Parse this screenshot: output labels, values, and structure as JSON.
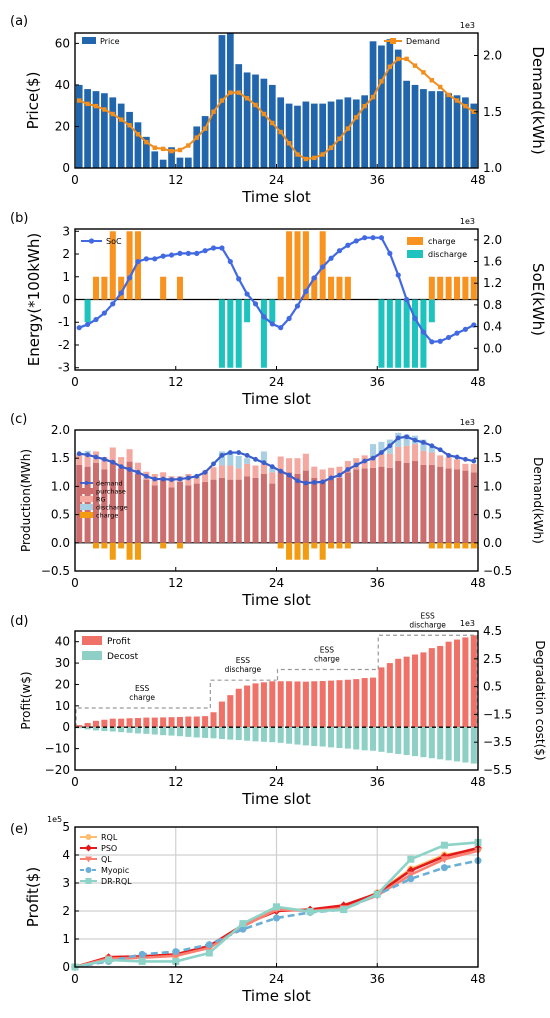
{
  "chart_data": [
    {
      "panel": "(a)",
      "type": "bar+line",
      "xlabel": "Time slot",
      "ylabel": "Price($)",
      "ylabel_right": "Demand(kWh)",
      "right_multiplier": "1e3",
      "xlim": [
        0,
        48
      ],
      "ylim": [
        0,
        65
      ],
      "ylim_right": [
        1.0,
        2.2
      ],
      "xticks": [
        "0",
        "12",
        "24",
        "36",
        "48"
      ],
      "yticks": [
        0,
        20,
        40,
        60
      ],
      "yticks_right": [
        1.0,
        1.5,
        2.0
      ],
      "yticks_right_labels": [
        "1.0",
        "1.5",
        "2.0"
      ],
      "legend": [
        "Price",
        "Demand"
      ],
      "series": [
        {
          "name": "Price",
          "type": "bar",
          "values": [
            40,
            38,
            37,
            36,
            34,
            31,
            27,
            22,
            15,
            8,
            4,
            10,
            5,
            5,
            20,
            25,
            45,
            64,
            65,
            50,
            46,
            45,
            43,
            40,
            34,
            31,
            30,
            32,
            31,
            31,
            32,
            33,
            34,
            33,
            35,
            61,
            59,
            62,
            57,
            42,
            40,
            38,
            37,
            37,
            36,
            35,
            34,
            31
          ]
        },
        {
          "name": "Demand",
          "type": "line",
          "values": [
            1.6,
            1.57,
            1.55,
            1.52,
            1.48,
            1.43,
            1.38,
            1.3,
            1.23,
            1.18,
            1.17,
            1.15,
            1.16,
            1.2,
            1.27,
            1.35,
            1.5,
            1.6,
            1.67,
            1.67,
            1.62,
            1.56,
            1.48,
            1.4,
            1.32,
            1.22,
            1.12,
            1.08,
            1.09,
            1.12,
            1.18,
            1.26,
            1.35,
            1.45,
            1.55,
            1.63,
            1.77,
            1.9,
            1.97,
            1.97,
            1.91,
            1.85,
            1.78,
            1.72,
            1.65,
            1.6,
            1.55,
            1.5
          ]
        }
      ]
    },
    {
      "panel": "(b)",
      "type": "bar+line",
      "xlabel": "Time slot",
      "ylabel": "Energy(*100kWh)",
      "ylabel_right": "SoE(kWh)",
      "right_multiplier": "1e3",
      "xlim": [
        0,
        48
      ],
      "ylim": [
        -3.1,
        3.1
      ],
      "ylim_right": [
        -0.4,
        2.2
      ],
      "xticks": [
        "0",
        "12",
        "24",
        "36",
        "48"
      ],
      "yticks": [
        -3,
        -2,
        -1,
        0,
        1,
        2,
        3
      ],
      "yticks_right": [
        0.0,
        0.4,
        0.8,
        1.2,
        1.6,
        2.0
      ],
      "yticks_right_labels": [
        "0.0",
        "0.4",
        "0.8",
        "1.2",
        "1.6",
        "2.0"
      ],
      "legend": [
        "SoC",
        "charge",
        "discharge"
      ],
      "series": [
        {
          "name": "charge",
          "type": "bar",
          "values": [
            0,
            0,
            1,
            1,
            3,
            1,
            3,
            3,
            0,
            0,
            1,
            0,
            1,
            0,
            0,
            0,
            0,
            0,
            0,
            0,
            0,
            0,
            0,
            0,
            1,
            3,
            3,
            3,
            1,
            3,
            1,
            1,
            1,
            0,
            0,
            0,
            0,
            0,
            0,
            0,
            0,
            0,
            1,
            1,
            1,
            1,
            1,
            1
          ]
        },
        {
          "name": "discharge",
          "type": "bar",
          "values": [
            0,
            -1,
            0,
            0,
            0,
            0,
            0,
            0,
            0,
            0,
            0,
            0,
            0,
            0,
            0,
            0,
            0,
            -3,
            -3,
            -3,
            -1,
            0,
            -3,
            -1,
            0,
            0,
            0,
            0,
            0,
            0,
            0,
            0,
            0,
            0,
            0,
            0,
            -3,
            -3,
            -3,
            -3,
            -3,
            -3,
            -1,
            0,
            0,
            0,
            0,
            0
          ]
        },
        {
          "name": "SoC",
          "type": "line",
          "values": [
            0.38,
            0.44,
            0.53,
            0.65,
            0.82,
            1.02,
            1.3,
            1.6,
            1.65,
            1.65,
            1.7,
            1.72,
            1.75,
            1.75,
            1.75,
            1.8,
            1.85,
            1.85,
            1.6,
            1.28,
            1.0,
            0.82,
            0.58,
            0.45,
            0.38,
            0.55,
            0.78,
            1.05,
            1.3,
            1.5,
            1.66,
            1.8,
            1.9,
            1.98,
            2.04,
            2.04,
            2.04,
            1.75,
            1.35,
            0.9,
            0.55,
            0.3,
            0.12,
            0.13,
            0.2,
            0.28,
            0.35,
            0.43
          ]
        }
      ]
    },
    {
      "panel": "(c)",
      "type": "stacked-bar+line",
      "xlabel": "Time slot",
      "ylabel": "Production(MWh)",
      "ylabel_right": "Demand(kWh)",
      "right_multiplier": "1e3",
      "xlim": [
        0,
        48
      ],
      "ylim": [
        -0.5,
        2.0
      ],
      "ylim_right": [
        -0.5,
        2.0
      ],
      "xticks": [
        "0",
        "12",
        "24",
        "36",
        "48"
      ],
      "yticks": [
        -0.5,
        0.0,
        0.5,
        1.0,
        1.5,
        2.0
      ],
      "yticks_labels": [
        "−0.5",
        "0.0",
        "0.5",
        "1.0",
        "1.5",
        "2.0"
      ],
      "yticks_right": [
        -0.5,
        0.0,
        0.5,
        1.0,
        1.5,
        2.0
      ],
      "yticks_right_labels": [
        "−0.5",
        "0.0",
        "0.5",
        "1.0",
        "1.5",
        "2.0"
      ],
      "legend": [
        "demand",
        "purchase",
        "RG",
        "discharge",
        "charge"
      ],
      "series": [
        {
          "name": "purchase",
          "type": "bar",
          "values": [
            1.38,
            1.35,
            1.42,
            1.3,
            1.45,
            1.32,
            1.44,
            1.22,
            1.12,
            1.02,
            1.15,
            0.98,
            1.08,
            1.02,
            1.05,
            1.08,
            1.12,
            1.15,
            1.12,
            1.12,
            1.18,
            1.15,
            1.22,
            1.05,
            1.28,
            1.25,
            1.22,
            1.28,
            1.15,
            1.1,
            1.15,
            1.15,
            1.25,
            1.3,
            1.32,
            1.33,
            1.35,
            1.33,
            1.45,
            1.42,
            1.45,
            1.38,
            1.38,
            1.35,
            1.32,
            1.3,
            1.28,
            1.25
          ]
        },
        {
          "name": "RG",
          "type": "bar",
          "values": [
            0.2,
            0.22,
            0.2,
            0.22,
            0.24,
            0.2,
            0.22,
            0.2,
            0.14,
            0.2,
            0.1,
            0.2,
            0.1,
            0.2,
            0.13,
            0.2,
            0.22,
            0.22,
            0.25,
            0.2,
            0.22,
            0.22,
            0.2,
            0.2,
            0.25,
            0.25,
            0.28,
            0.3,
            0.2,
            0.2,
            0.18,
            0.2,
            0.2,
            0.2,
            0.23,
            0.2,
            0.22,
            0.25,
            0.25,
            0.3,
            0.3,
            0.25,
            0.22,
            0.2,
            0.2,
            0.18,
            0.12,
            0.15
          ]
        },
        {
          "name": "discharge",
          "type": "bar",
          "values": [
            0,
            0.06,
            0,
            0,
            0,
            0,
            0,
            0,
            0,
            0,
            0,
            0,
            0,
            0,
            0,
            0,
            0,
            0.25,
            0.25,
            0.22,
            0.1,
            0,
            0.2,
            0.08,
            0,
            0,
            0,
            0,
            0,
            0,
            0,
            0,
            0,
            0,
            0,
            0.22,
            0.22,
            0.25,
            0.25,
            0.2,
            0.15,
            0.2,
            0.1,
            0,
            0,
            0,
            0,
            0
          ]
        },
        {
          "name": "charge",
          "type": "bar",
          "values": [
            0,
            0,
            -0.1,
            -0.1,
            -0.3,
            -0.1,
            -0.3,
            -0.3,
            0,
            0,
            -0.1,
            0,
            -0.1,
            0,
            0,
            0,
            0,
            0,
            0,
            0,
            0,
            0,
            0,
            0,
            -0.1,
            -0.3,
            -0.3,
            -0.3,
            -0.1,
            -0.3,
            -0.1,
            -0.1,
            -0.1,
            0,
            0,
            0,
            0,
            0,
            0,
            0,
            0,
            0,
            -0.1,
            -0.1,
            -0.1,
            -0.1,
            -0.1,
            -0.1
          ]
        },
        {
          "name": "demand",
          "type": "line",
          "values": [
            1.58,
            1.56,
            1.52,
            1.48,
            1.43,
            1.35,
            1.3,
            1.25,
            1.18,
            1.13,
            1.13,
            1.12,
            1.13,
            1.15,
            1.18,
            1.25,
            1.4,
            1.55,
            1.6,
            1.6,
            1.55,
            1.48,
            1.42,
            1.35,
            1.27,
            1.2,
            1.1,
            1.06,
            1.07,
            1.08,
            1.15,
            1.2,
            1.3,
            1.38,
            1.45,
            1.5,
            1.6,
            1.72,
            1.86,
            1.88,
            1.82,
            1.78,
            1.72,
            1.65,
            1.55,
            1.52,
            1.48,
            1.45
          ]
        }
      ]
    },
    {
      "panel": "(d)",
      "type": "bar",
      "xlabel": "Time slot",
      "ylabel": "Profit(w$)",
      "ylabel_right": "Degradation cost($)",
      "right_multiplier": "1e3",
      "xlim": [
        0,
        48
      ],
      "ylim": [
        -20,
        45
      ],
      "ylim_right": [
        -5.5,
        4.5
      ],
      "xticks": [
        "0",
        "12",
        "24",
        "36",
        "48"
      ],
      "yticks": [
        -20,
        -10,
        0,
        10,
        20,
        30,
        40
      ],
      "yticks_labels": [
        "−20",
        "−10",
        "0",
        "10",
        "20",
        "30",
        "40"
      ],
      "yticks_right": [
        -5.5,
        -3.5,
        -1.5,
        0.5,
        2.5,
        4.5
      ],
      "yticks_right_labels": [
        "−5.5",
        "−3.5",
        "−1.5",
        "0.5",
        "2.5",
        "4.5"
      ],
      "legend": [
        "Profit",
        "Decost"
      ],
      "annotations": [
        {
          "text_lines": [
            "ESS",
            "charge"
          ],
          "x_range": [
            0,
            16
          ],
          "level": 9
        },
        {
          "text_lines": [
            "ESS",
            "discharge"
          ],
          "x_range": [
            16,
            24
          ],
          "level": 22
        },
        {
          "text_lines": [
            "ESS",
            "charge"
          ],
          "x_range": [
            24,
            36
          ],
          "level": 27
        },
        {
          "text_lines": [
            "ESS",
            "discharge"
          ],
          "x_range": [
            36,
            48
          ],
          "level": 43
        }
      ],
      "series": [
        {
          "name": "Profit",
          "type": "bar",
          "values": [
            1,
            2,
            3,
            3.5,
            4,
            4,
            4.2,
            4.3,
            4.5,
            4.5,
            4.6,
            4.7,
            4.8,
            5,
            5,
            5.2,
            7,
            12,
            15,
            18,
            19.5,
            20.5,
            21,
            21.5,
            21.5,
            21.5,
            21.4,
            21.3,
            21.5,
            21.6,
            21.8,
            22,
            22.2,
            22.5,
            23,
            23.2,
            28,
            30,
            32,
            33,
            34,
            35,
            37,
            38,
            40,
            41,
            42,
            43
          ]
        },
        {
          "name": "Decost",
          "type": "bar",
          "values": [
            -0.5,
            -1,
            -1.5,
            -1.8,
            -2,
            -2.3,
            -2.6,
            -2.9,
            -3.1,
            -3.4,
            -3.7,
            -3.9,
            -4.2,
            -4.5,
            -4.8,
            -5,
            -5.2,
            -5.5,
            -5.8,
            -6,
            -6.3,
            -6.6,
            -6.8,
            -7,
            -7.3,
            -7.7,
            -8.1,
            -8.5,
            -8.8,
            -9,
            -9.4,
            -9.7,
            -10,
            -10.4,
            -10.8,
            -11,
            -11.5,
            -12,
            -12.5,
            -13,
            -13.5,
            -14,
            -14.5,
            -15,
            -15.5,
            -16,
            -16.5,
            -17
          ]
        }
      ]
    },
    {
      "panel": "(e)",
      "type": "line",
      "xlabel": "Time slot",
      "ylabel": "Profit($)",
      "left_multiplier": "1e5",
      "xlim": [
        0,
        48
      ],
      "ylim": [
        0,
        5
      ],
      "xticks": [
        "0",
        "12",
        "24",
        "36",
        "48"
      ],
      "yticks": [
        0,
        1,
        2,
        3,
        4,
        5
      ],
      "grid": true,
      "legend": [
        "RQL",
        "PSO",
        "QL",
        "Myopic",
        "DR-RQL"
      ],
      "x": [
        0,
        4,
        8,
        12,
        16,
        20,
        24,
        28,
        32,
        36,
        40,
        44,
        48
      ],
      "series": [
        {
          "name": "RQL",
          "values": [
            0,
            0.3,
            0.35,
            0.4,
            0.7,
            1.5,
            2.05,
            2.02,
            2.15,
            2.65,
            3.5,
            4.0,
            4.2
          ]
        },
        {
          "name": "PSO",
          "values": [
            0,
            0.35,
            0.38,
            0.45,
            0.75,
            1.5,
            2.0,
            2.05,
            2.2,
            2.62,
            3.45,
            3.95,
            4.25
          ]
        },
        {
          "name": "QL",
          "values": [
            0,
            0.3,
            0.33,
            0.4,
            0.68,
            1.45,
            2.05,
            2.0,
            2.1,
            2.55,
            3.3,
            3.85,
            4.15
          ]
        },
        {
          "name": "Myopic",
          "values": [
            0,
            0.2,
            0.45,
            0.55,
            0.8,
            1.35,
            1.75,
            1.95,
            2.05,
            2.58,
            3.15,
            3.55,
            3.8
          ]
        },
        {
          "name": "DR-RQL",
          "values": [
            0,
            0.25,
            0.2,
            0.2,
            0.5,
            1.55,
            2.15,
            1.98,
            2.05,
            2.6,
            3.85,
            4.35,
            4.45
          ]
        }
      ]
    }
  ],
  "colors": {
    "Price": "#2166ac",
    "Demand": "#f28e1c",
    "charge": "#f7931e",
    "discharge_b": "#1ec3bd",
    "SoC": "#4169e1",
    "purchase": "#cd6e6e",
    "RG": "#f4a9a0",
    "discharge_c": "#a8cfe3",
    "charge_c": "#f39c12",
    "demand_c": "#3a5fcd",
    "Profit": "#f07167",
    "Decost": "#8fd0c6",
    "RQL": "#fdbf6f",
    "PSO": "#e31a1c",
    "QL": "#fb8072",
    "Myopic": "#6baed6",
    "DR-RQL": "#8dd3c7"
  }
}
